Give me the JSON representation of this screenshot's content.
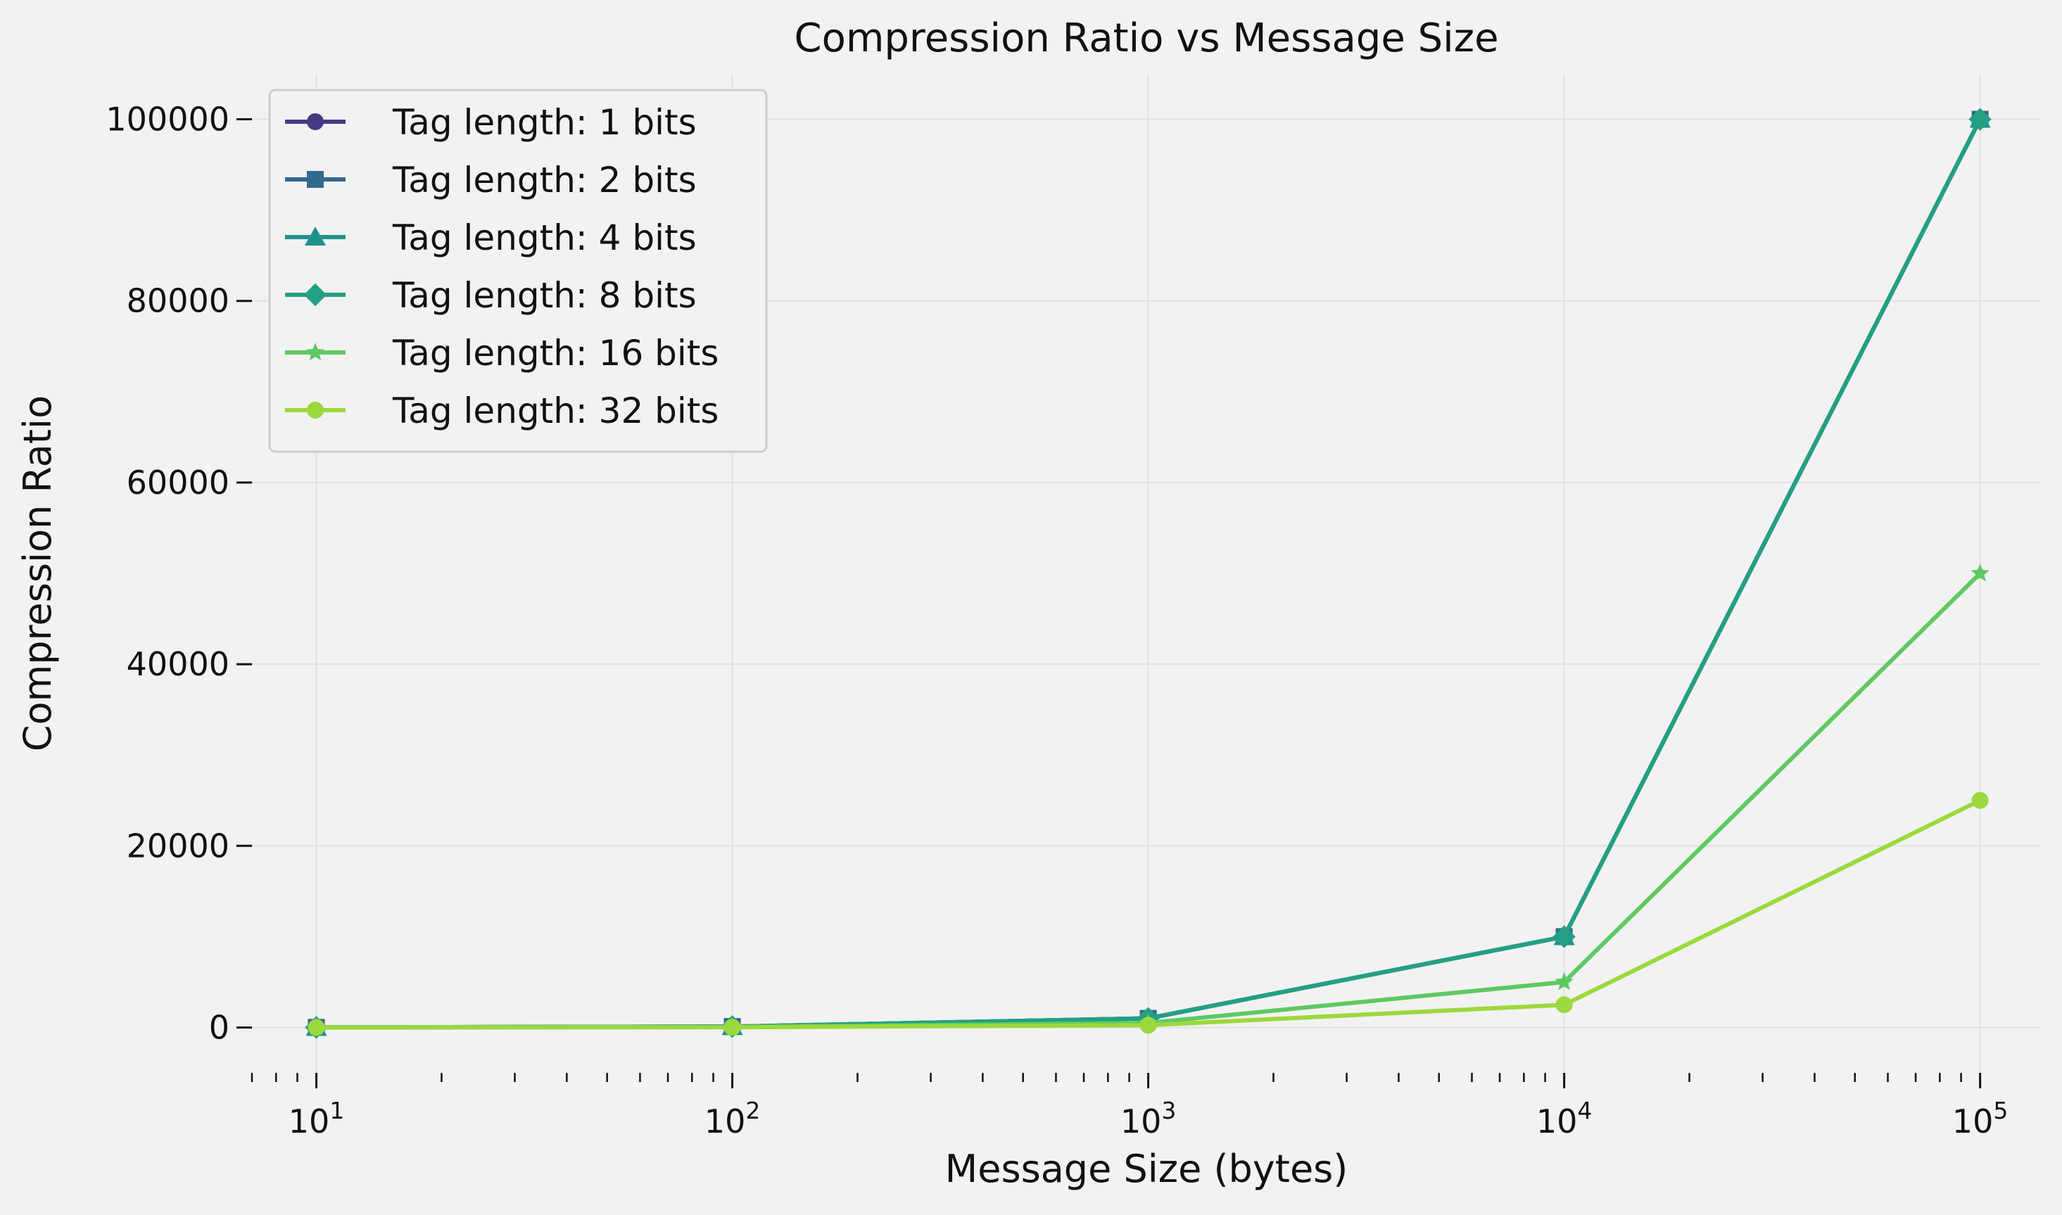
{
  "chart_data": {
    "type": "line",
    "title": "Compression Ratio vs Message Size",
    "xlabel": "Message Size (bytes)",
    "ylabel": "Compression Ratio",
    "xscale": "log",
    "x": [
      10,
      100,
      1000,
      10000,
      100000
    ],
    "x_tick_labels": [
      {
        "base": "10",
        "exp": "1"
      },
      {
        "base": "10",
        "exp": "2"
      },
      {
        "base": "10",
        "exp": "3"
      },
      {
        "base": "10",
        "exp": "4"
      },
      {
        "base": "10",
        "exp": "5"
      }
    ],
    "xlim": [
      7,
      140000
    ],
    "ylim": [
      -5000,
      105000
    ],
    "y_ticks": [
      0,
      20000,
      40000,
      60000,
      80000,
      100000
    ],
    "grid": true,
    "legend_position": "top-left",
    "series": [
      {
        "name": "Tag length: 1 bits",
        "color": "#443983",
        "marker": "circle",
        "values": [
          10,
          100,
          1000,
          10000,
          100000
        ]
      },
      {
        "name": "Tag length: 2 bits",
        "color": "#31688e",
        "marker": "square",
        "values": [
          10,
          100,
          1000,
          10000,
          100000
        ]
      },
      {
        "name": "Tag length: 4 bits",
        "color": "#21918c",
        "marker": "triangle",
        "values": [
          10,
          100,
          1000,
          10000,
          100000
        ]
      },
      {
        "name": "Tag length: 8 bits",
        "color": "#23a083",
        "marker": "diamond",
        "values": [
          10,
          100,
          1000,
          10000,
          100000
        ]
      },
      {
        "name": "Tag length: 16 bits",
        "color": "#5ec962",
        "marker": "star",
        "values": [
          5,
          50,
          500,
          5000,
          50000
        ]
      },
      {
        "name": "Tag length: 32 bits",
        "color": "#9bd93c",
        "marker": "circle",
        "values": [
          2.5,
          25,
          250,
          2500,
          25000
        ]
      }
    ]
  }
}
